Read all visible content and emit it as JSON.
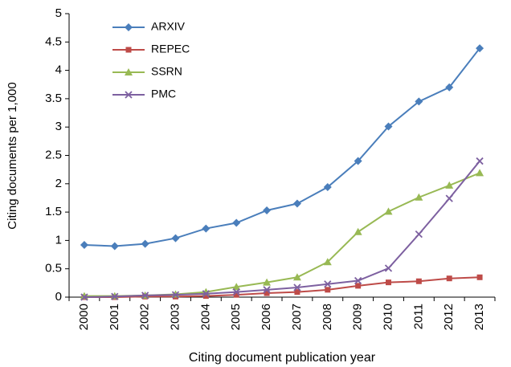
{
  "chart_data": {
    "type": "line",
    "x_label": "Citing document publication year",
    "y_label": "Citing documents per 1,000",
    "categories": [
      "2000",
      "2001",
      "2002",
      "2003",
      "2004",
      "2005",
      "2006",
      "2007",
      "2008",
      "2009",
      "2010",
      "2011",
      "2012",
      "2013"
    ],
    "series": [
      {
        "name": "ARXIV",
        "color": "#4a7ebb",
        "marker": "diamond",
        "values": [
          0.92,
          0.9,
          0.94,
          1.04,
          1.21,
          1.31,
          1.53,
          1.65,
          1.94,
          2.4,
          3.01,
          3.45,
          3.7,
          4.39
        ]
      },
      {
        "name": "REPEC",
        "color": "#be4b48",
        "marker": "square",
        "values": [
          0,
          0,
          0.01,
          0.01,
          0.02,
          0.04,
          0.07,
          0.09,
          0.13,
          0.2,
          0.26,
          0.28,
          0.33,
          0.35
        ]
      },
      {
        "name": "SSRN",
        "color": "#98b954",
        "marker": "triangle",
        "values": [
          0.02,
          0.02,
          0.03,
          0.05,
          0.09,
          0.18,
          0.26,
          0.35,
          0.62,
          1.15,
          1.51,
          1.76,
          1.97,
          2.19
        ]
      },
      {
        "name": "PMC",
        "color": "#7d60a0",
        "marker": "x",
        "values": [
          0,
          0.01,
          0.03,
          0.04,
          0.06,
          0.09,
          0.13,
          0.17,
          0.23,
          0.29,
          0.51,
          1.11,
          1.74,
          2.4
        ]
      }
    ],
    "ylim": [
      0,
      5
    ],
    "yticks": [
      0,
      0.5,
      1,
      1.5,
      2,
      2.5,
      3,
      3.5,
      4,
      4.5,
      5
    ],
    "grid": false,
    "legend": "upper left"
  }
}
